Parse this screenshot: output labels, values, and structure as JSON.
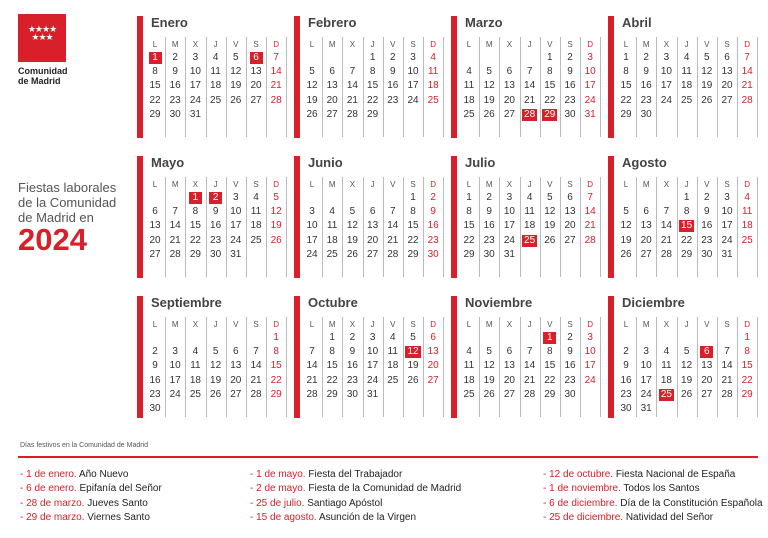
{
  "logo": {
    "text_line1": "Comunidad",
    "text_line2": "de Madrid",
    "stars": "★★★★\n★★★"
  },
  "title": {
    "line1": "Fiestas laborales",
    "line2": "de la Comunidad",
    "line3": "de Madrid en",
    "year": "2024"
  },
  "weekdays": [
    "L",
    "M",
    "X",
    "J",
    "V",
    "S",
    "D"
  ],
  "colors": {
    "accent": "#d8202a",
    "text": "#333333",
    "separator": "#bbbbbb"
  },
  "months": [
    {
      "name": "Enero",
      "holidays": [
        1,
        6
      ],
      "weeks": [
        [
          1,
          2,
          3,
          4,
          5,
          6,
          7
        ],
        [
          8,
          9,
          10,
          11,
          12,
          13,
          14
        ],
        [
          15,
          16,
          17,
          18,
          19,
          20,
          21
        ],
        [
          22,
          23,
          24,
          25,
          26,
          27,
          28
        ],
        [
          29,
          30,
          31,
          null,
          null,
          null,
          null
        ]
      ]
    },
    {
      "name": "Febrero",
      "holidays": [],
      "weeks": [
        [
          null,
          null,
          null,
          1,
          2,
          3,
          4
        ],
        [
          5,
          6,
          7,
          8,
          9,
          10,
          11
        ],
        [
          12,
          13,
          14,
          15,
          16,
          17,
          18
        ],
        [
          19,
          20,
          21,
          22,
          23,
          24,
          25
        ],
        [
          26,
          27,
          28,
          29,
          null,
          null,
          null
        ]
      ]
    },
    {
      "name": "Marzo",
      "holidays": [
        28,
        29
      ],
      "weeks": [
        [
          null,
          null,
          null,
          null,
          1,
          2,
          3
        ],
        [
          4,
          5,
          6,
          7,
          8,
          9,
          10
        ],
        [
          11,
          12,
          13,
          14,
          15,
          16,
          17
        ],
        [
          18,
          19,
          20,
          21,
          22,
          23,
          24
        ],
        [
          25,
          26,
          27,
          28,
          29,
          30,
          31
        ]
      ]
    },
    {
      "name": "Abril",
      "holidays": [],
      "weeks": [
        [
          1,
          2,
          3,
          4,
          5,
          6,
          7
        ],
        [
          8,
          9,
          10,
          11,
          12,
          13,
          14
        ],
        [
          15,
          16,
          17,
          18,
          19,
          20,
          21
        ],
        [
          22,
          23,
          24,
          25,
          26,
          27,
          28
        ],
        [
          29,
          30,
          null,
          null,
          null,
          null,
          null
        ]
      ]
    },
    {
      "name": "Mayo",
      "holidays": [
        1,
        2
      ],
      "weeks": [
        [
          null,
          null,
          1,
          2,
          3,
          4,
          5
        ],
        [
          6,
          7,
          8,
          9,
          10,
          11,
          12
        ],
        [
          13,
          14,
          15,
          16,
          17,
          18,
          19
        ],
        [
          20,
          21,
          22,
          23,
          24,
          25,
          26
        ],
        [
          27,
          28,
          29,
          30,
          31,
          null,
          null
        ]
      ]
    },
    {
      "name": "Junio",
      "holidays": [],
      "weeks": [
        [
          null,
          null,
          null,
          null,
          null,
          1,
          2
        ],
        [
          3,
          4,
          5,
          6,
          7,
          8,
          9
        ],
        [
          10,
          11,
          12,
          13,
          14,
          15,
          16
        ],
        [
          17,
          18,
          19,
          20,
          21,
          22,
          23
        ],
        [
          24,
          25,
          26,
          27,
          28,
          29,
          30
        ]
      ]
    },
    {
      "name": "Julio",
      "holidays": [
        25
      ],
      "weeks": [
        [
          1,
          2,
          3,
          4,
          5,
          6,
          7
        ],
        [
          8,
          9,
          10,
          11,
          12,
          13,
          14
        ],
        [
          15,
          16,
          17,
          18,
          19,
          20,
          21
        ],
        [
          22,
          23,
          24,
          25,
          26,
          27,
          28
        ],
        [
          29,
          30,
          31,
          null,
          null,
          null,
          null
        ]
      ]
    },
    {
      "name": "Agosto",
      "holidays": [
        15
      ],
      "weeks": [
        [
          null,
          null,
          null,
          1,
          2,
          3,
          4
        ],
        [
          5,
          6,
          7,
          8,
          9,
          10,
          11
        ],
        [
          12,
          13,
          14,
          15,
          16,
          17,
          18
        ],
        [
          19,
          20,
          21,
          22,
          23,
          24,
          25
        ],
        [
          26,
          27,
          28,
          29,
          30,
          31,
          null
        ]
      ]
    },
    {
      "name": "Septiembre",
      "holidays": [],
      "weeks": [
        [
          null,
          null,
          null,
          null,
          null,
          null,
          1
        ],
        [
          2,
          3,
          4,
          5,
          6,
          7,
          8
        ],
        [
          9,
          10,
          11,
          12,
          13,
          14,
          15
        ],
        [
          16,
          17,
          18,
          19,
          20,
          21,
          22
        ],
        [
          23,
          24,
          25,
          26,
          27,
          28,
          29
        ],
        [
          30,
          null,
          null,
          null,
          null,
          null,
          null
        ]
      ]
    },
    {
      "name": "Octubre",
      "holidays": [
        12
      ],
      "weeks": [
        [
          null,
          1,
          2,
          3,
          4,
          5,
          6
        ],
        [
          7,
          8,
          9,
          10,
          11,
          12,
          13
        ],
        [
          14,
          15,
          16,
          17,
          18,
          19,
          20
        ],
        [
          21,
          22,
          23,
          24,
          25,
          26,
          27
        ],
        [
          28,
          29,
          30,
          31,
          null,
          null,
          null
        ]
      ]
    },
    {
      "name": "Noviembre",
      "holidays": [
        1
      ],
      "weeks": [
        [
          null,
          null,
          null,
          null,
          1,
          2,
          3
        ],
        [
          4,
          5,
          6,
          7,
          8,
          9,
          10
        ],
        [
          11,
          12,
          13,
          14,
          15,
          16,
          17
        ],
        [
          18,
          19,
          20,
          21,
          22,
          23,
          24
        ],
        [
          25,
          26,
          27,
          28,
          29,
          30,
          null
        ]
      ]
    },
    {
      "name": "Diciembre",
      "holidays": [
        6,
        25
      ],
      "weeks": [
        [
          null,
          null,
          null,
          null,
          null,
          null,
          1
        ],
        [
          2,
          3,
          4,
          5,
          6,
          7,
          8
        ],
        [
          9,
          10,
          11,
          12,
          13,
          14,
          15
        ],
        [
          16,
          17,
          18,
          19,
          20,
          21,
          22
        ],
        [
          23,
          24,
          25,
          26,
          27,
          28,
          29
        ],
        [
          30,
          31,
          null,
          null,
          null,
          null,
          null
        ]
      ]
    }
  ],
  "legend": {
    "title": "Días festivos en la Comunidad de Madrid",
    "columns": [
      [
        {
          "date": "- 1 de enero.",
          "desc": " Año Nuevo"
        },
        {
          "date": "- 6 de enero.",
          "desc": " Epifanía del Señor"
        },
        {
          "date": "- 28 de marzo.",
          "desc": " Jueves Santo"
        },
        {
          "date": "- 29 de marzo.",
          "desc": " Viernes Santo"
        }
      ],
      [
        {
          "date": "- 1 de mayo.",
          "desc": " Fiesta del Trabajador"
        },
        {
          "date": "- 2 de mayo.",
          "desc": " Fiesta de la Comunidad de Madrid"
        },
        {
          "date": "- 25 de julio.",
          "desc": " Santiago Apóstol"
        },
        {
          "date": "- 15 de agosto.",
          "desc": " Asunción de la Virgen"
        }
      ],
      [
        {
          "date": "- 12 de octubre.",
          "desc": " Fiesta Nacional de España"
        },
        {
          "date": "- 1 de noviembre.",
          "desc": " Todos los Santos"
        },
        {
          "date": "- 6 de diciembre.",
          "desc": " Día de la Constitución Española"
        },
        {
          "date": "- 25 de diciembre.",
          "desc": " Natividad del Señor"
        }
      ]
    ]
  }
}
